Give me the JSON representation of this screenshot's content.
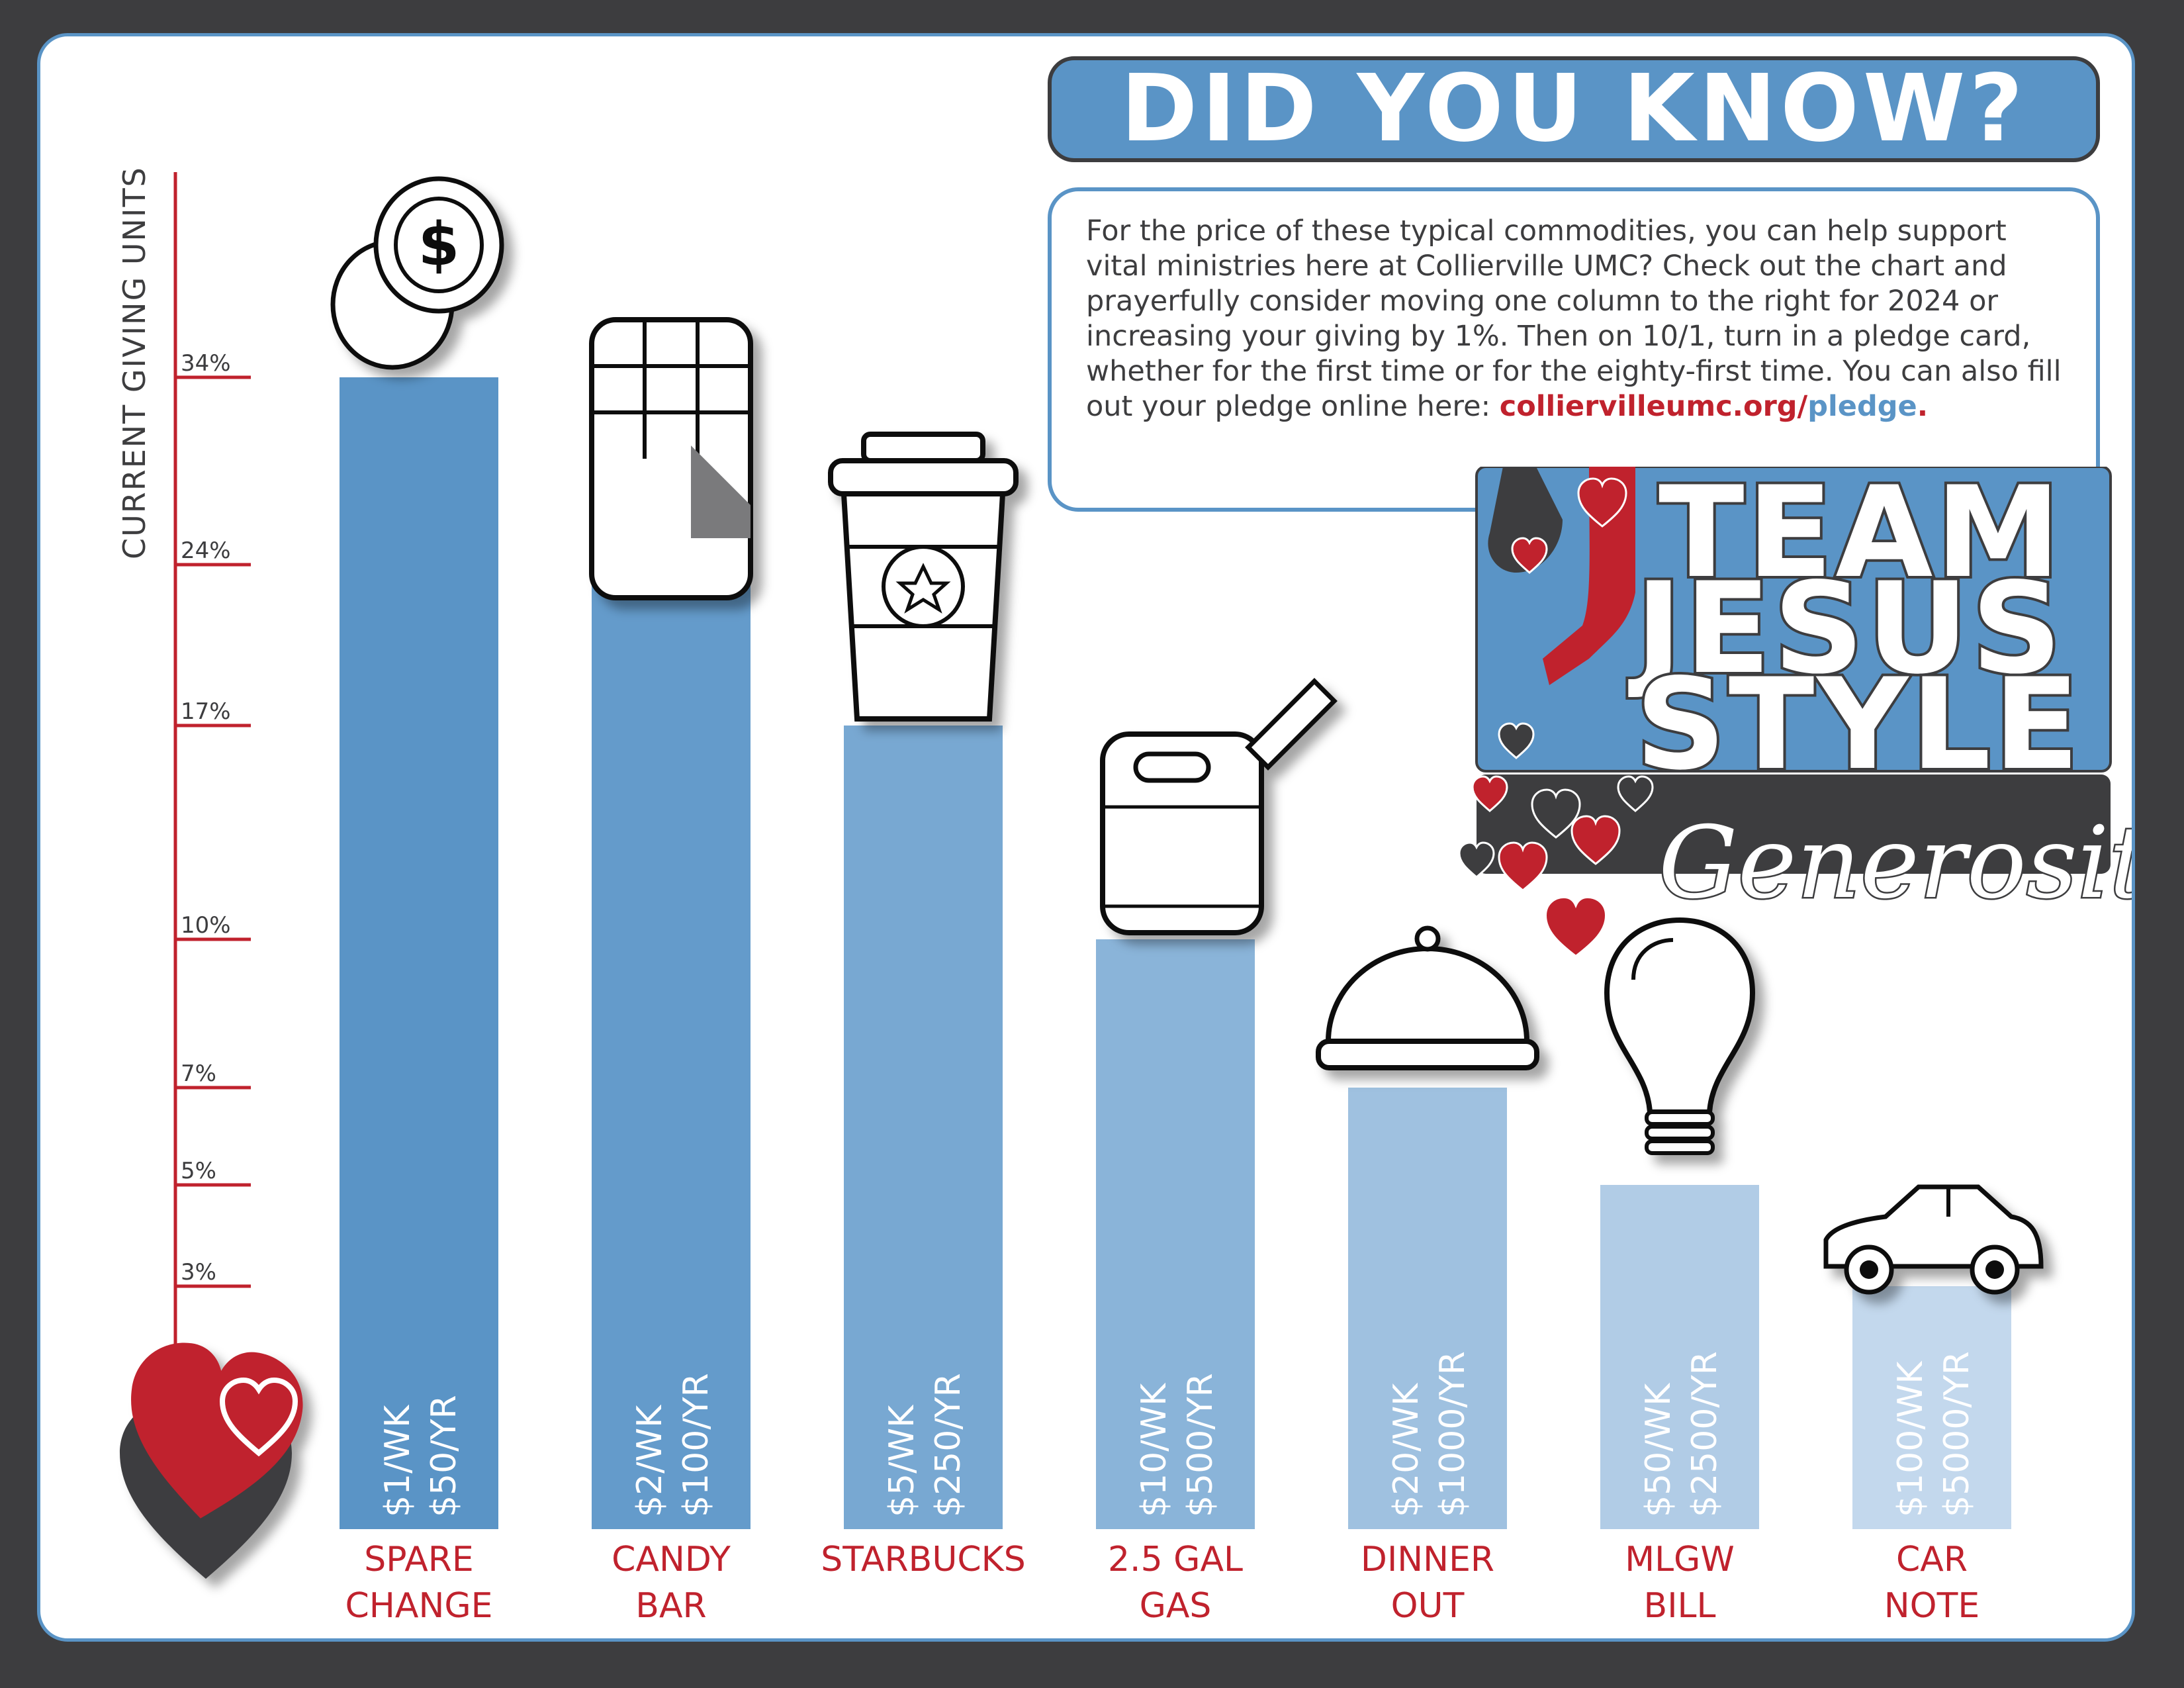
{
  "header": {
    "title": "DID YOU KNOW?"
  },
  "info": {
    "text": "For the price of these typical commodities, you can help support vital ministries here at Collierville UMC? Check out the chart and prayerfully consider moving one column to the right for 2024 or increasing your giving by 1%. Then on 10/1, turn in a pledge card, whether for the first time or for the eighty-first time. You can also fill out your pledge online here: ",
    "link_part_a": "colliervilleumc.org/",
    "link_part_b": "pledge",
    "link_end": "."
  },
  "logo": {
    "line1": "TEAM",
    "line2": "JESUS",
    "line3": "STYLE",
    "script": "Generosity"
  },
  "colors": {
    "accent_blue": "#5a94c6",
    "accent_red": "#c0222d",
    "dark_gray": "#3d3d3f"
  },
  "chart_data": {
    "type": "bar",
    "ylabel": "CURRENT GIVING UNITS",
    "y_ticks": [
      "34%",
      "24%",
      "17%",
      "10%",
      "7%",
      "5%",
      "3%"
    ],
    "categories": [
      {
        "label_line1": "SPARE",
        "label_line2": "CHANGE",
        "weekly": "$1/WK",
        "yearly": "$50/YR",
        "value": 34,
        "icon": "coins-icon",
        "color": "#5a94c6"
      },
      {
        "label_line1": "CANDY",
        "label_line2": "BAR",
        "weekly": "$2/WK",
        "yearly": "$100/YR",
        "value": 24,
        "icon": "candy-bar-icon",
        "color": "#649bcb"
      },
      {
        "label_line1": "STARBUCKS",
        "label_line2": "",
        "weekly": "$5/WK",
        "yearly": "$250/YR",
        "value": 17,
        "icon": "coffee-cup-icon",
        "color": "#78a8d2"
      },
      {
        "label_line1": "2.5 GAL",
        "label_line2": "GAS",
        "weekly": "$10/WK",
        "yearly": "$500/YR",
        "value": 10,
        "icon": "gas-can-icon",
        "color": "#8ab4d9"
      },
      {
        "label_line1": "DINNER",
        "label_line2": "OUT",
        "weekly": "$20/WK",
        "yearly": "$1000/YR",
        "value": 7,
        "icon": "food-cloche-icon",
        "color": "#9fc1e0"
      },
      {
        "label_line1": "MLGW",
        "label_line2": "BILL",
        "weekly": "$50/WK",
        "yearly": "$2500/YR",
        "value": 5,
        "icon": "light-bulb-icon",
        "color": "#b1cce6"
      },
      {
        "label_line1": "CAR",
        "label_line2": "NOTE",
        "weekly": "$100/WK",
        "yearly": "$5000/YR",
        "value": 3,
        "icon": "car-icon",
        "color": "#c3d8ed"
      }
    ]
  }
}
